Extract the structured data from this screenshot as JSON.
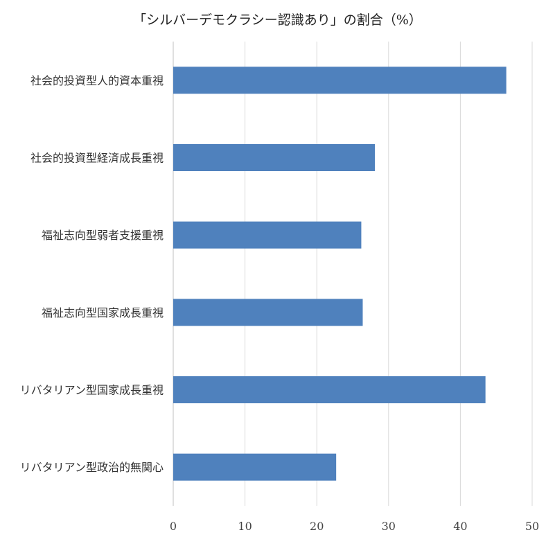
{
  "chart_data": {
    "type": "bar",
    "orientation": "horizontal",
    "title": "「シルバーデモクラシー認識あり」の割合（%）",
    "xlabel": "",
    "ylabel": "",
    "categories": [
      "社会的投資型人的資本重視",
      "社会的投資型経済成長重視",
      "福祉志向型弱者支援重視",
      "福祉志向型国家成長重視",
      "リバタリアン型国家成長重視",
      "リバタリアン型政治的無関心"
    ],
    "values": [
      46.4,
      28.1,
      26.2,
      26.4,
      43.5,
      22.7
    ],
    "xlim": [
      0,
      50
    ],
    "xticks": [
      0,
      10,
      20,
      30,
      40,
      50
    ],
    "grid": "vertical",
    "legend": "none",
    "bar_color": "#4f81bd",
    "grid_color": "#d9d9d9"
  }
}
